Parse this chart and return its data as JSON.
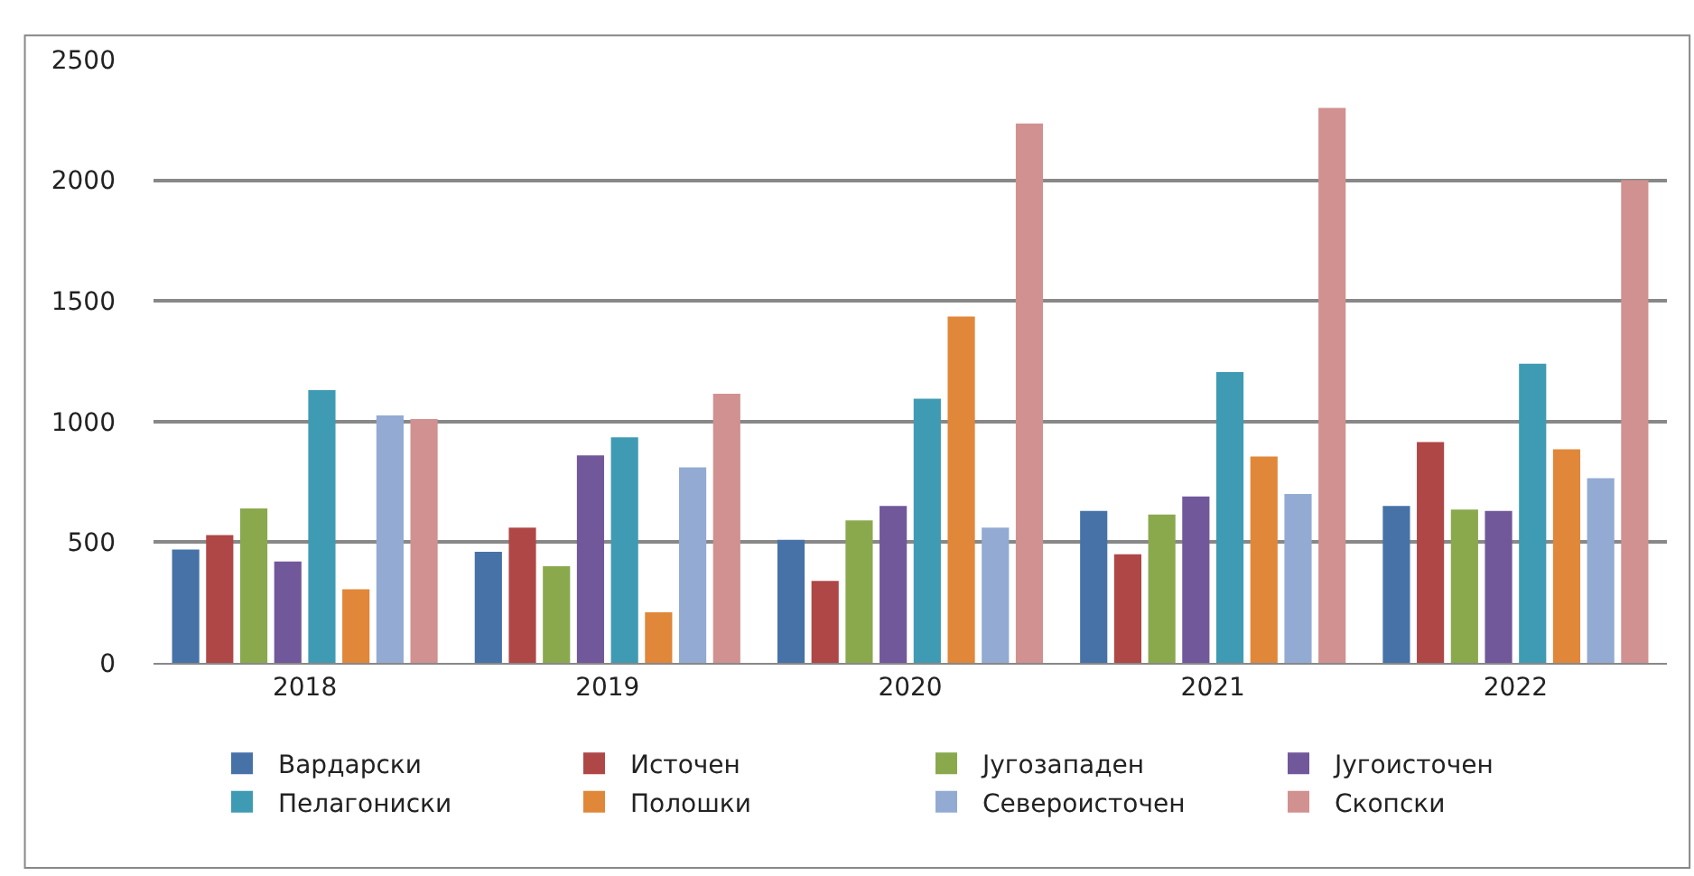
{
  "chart_data": {
    "type": "bar",
    "categories": [
      "2018",
      "2019",
      "2020",
      "2021",
      "2022"
    ],
    "series": [
      {
        "name": "Вардарски",
        "color": "#4672a8",
        "values": [
          470,
          460,
          510,
          630,
          650
        ]
      },
      {
        "name": "Источен",
        "color": "#b04747",
        "values": [
          530,
          560,
          340,
          450,
          915
        ]
      },
      {
        "name": "Југозападен",
        "color": "#8aa94d",
        "values": [
          640,
          400,
          590,
          615,
          635
        ]
      },
      {
        "name": "Југоисточен",
        "color": "#71589a",
        "values": [
          420,
          860,
          650,
          690,
          630
        ]
      },
      {
        "name": "Пелагониски",
        "color": "#3f9bb3",
        "values": [
          1130,
          935,
          1095,
          1205,
          1240
        ]
      },
      {
        "name": "Полошки",
        "color": "#e0873a",
        "values": [
          305,
          210,
          1435,
          855,
          885
        ]
      },
      {
        "name": "Североисточен",
        "color": "#93aad3",
        "values": [
          1025,
          810,
          560,
          700,
          765
        ]
      },
      {
        "name": "Скопски",
        "color": "#d19190",
        "values": [
          1010,
          1115,
          2235,
          2300,
          2000
        ]
      }
    ],
    "ylim": [
      0,
      2500
    ],
    "yticks": [
      0,
      500,
      1000,
      1500,
      2000,
      2500
    ],
    "grid": "y",
    "legend": "bottom"
  }
}
